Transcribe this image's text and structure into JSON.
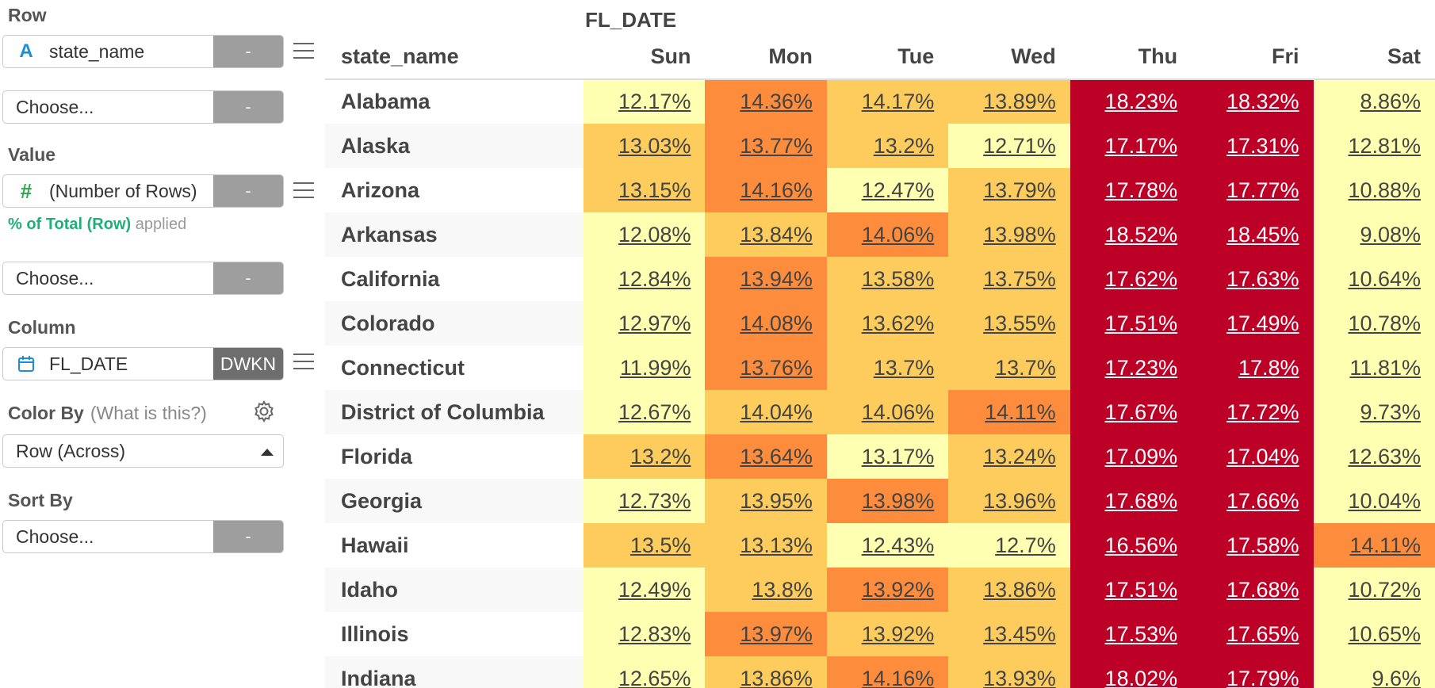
{
  "sidebar": {
    "row": {
      "label": "Row",
      "field": {
        "name": "state_name",
        "type_icon": "A",
        "button": "-"
      },
      "choose": {
        "text": "Choose...",
        "button": "-"
      }
    },
    "value": {
      "label": "Value",
      "field": {
        "name": "(Number of Rows)",
        "type_icon": "#",
        "button": "-"
      },
      "applied_calc": "% of Total (Row)",
      "applied_suffix": "applied",
      "choose": {
        "text": "Choose...",
        "button": "-"
      }
    },
    "column": {
      "label": "Column",
      "field": {
        "name": "FL_DATE",
        "type_icon": "calendar-icon",
        "button": "DWKN"
      }
    },
    "color_by": {
      "label": "Color By",
      "help": "(What is this?)",
      "selected": "Row (Across)"
    },
    "sort_by": {
      "label": "Sort By",
      "choose": {
        "text": "Choose...",
        "button": "-"
      }
    }
  },
  "pivot": {
    "column_group": "FL_DATE",
    "row_header": "state_name",
    "columns": [
      "Sun",
      "Mon",
      "Tue",
      "Wed",
      "Thu",
      "Fri",
      "Sat"
    ],
    "rows": [
      {
        "name": "Alabama",
        "values": [
          "12.17%",
          "14.36%",
          "14.17%",
          "13.89%",
          "18.23%",
          "18.32%",
          "8.86%"
        ]
      },
      {
        "name": "Alaska",
        "values": [
          "13.03%",
          "13.77%",
          "13.2%",
          "12.71%",
          "17.17%",
          "17.31%",
          "12.81%"
        ]
      },
      {
        "name": "Arizona",
        "values": [
          "13.15%",
          "14.16%",
          "12.47%",
          "13.79%",
          "17.78%",
          "17.77%",
          "10.88%"
        ]
      },
      {
        "name": "Arkansas",
        "values": [
          "12.08%",
          "13.84%",
          "14.06%",
          "13.98%",
          "18.52%",
          "18.45%",
          "9.08%"
        ]
      },
      {
        "name": "California",
        "values": [
          "12.84%",
          "13.94%",
          "13.58%",
          "13.75%",
          "17.62%",
          "17.63%",
          "10.64%"
        ]
      },
      {
        "name": "Colorado",
        "values": [
          "12.97%",
          "14.08%",
          "13.62%",
          "13.55%",
          "17.51%",
          "17.49%",
          "10.78%"
        ]
      },
      {
        "name": "Connecticut",
        "values": [
          "11.99%",
          "13.76%",
          "13.7%",
          "13.7%",
          "17.23%",
          "17.8%",
          "11.81%"
        ]
      },
      {
        "name": "District of Columbia",
        "values": [
          "12.67%",
          "14.04%",
          "14.06%",
          "14.11%",
          "17.67%",
          "17.72%",
          "9.73%"
        ]
      },
      {
        "name": "Florida",
        "values": [
          "13.2%",
          "13.64%",
          "13.17%",
          "13.24%",
          "17.09%",
          "17.04%",
          "12.63%"
        ]
      },
      {
        "name": "Georgia",
        "values": [
          "12.73%",
          "13.95%",
          "13.98%",
          "13.96%",
          "17.68%",
          "17.66%",
          "10.04%"
        ]
      },
      {
        "name": "Hawaii",
        "values": [
          "13.5%",
          "13.13%",
          "12.43%",
          "12.7%",
          "16.56%",
          "17.58%",
          "14.11%"
        ]
      },
      {
        "name": "Idaho",
        "values": [
          "12.49%",
          "13.8%",
          "13.92%",
          "13.86%",
          "17.51%",
          "17.68%",
          "10.72%"
        ]
      },
      {
        "name": "Illinois",
        "values": [
          "12.83%",
          "13.97%",
          "13.92%",
          "13.45%",
          "17.53%",
          "17.65%",
          "10.65%"
        ]
      },
      {
        "name": "Indiana",
        "values": [
          "12.65%",
          "13.86%",
          "14.16%",
          "13.93%",
          "18.02%",
          "17.79%",
          "9.6%"
        ]
      }
    ]
  },
  "colors": {
    "scale": [
      "#ffffb2",
      "#fecc5c",
      "#fd8d3c",
      "#bd0026"
    ],
    "accent_green": "#1fae7a",
    "string_icon": "#1a8fd6",
    "number_icon": "#2aa84a",
    "date_icon": "#1a8fd6"
  }
}
